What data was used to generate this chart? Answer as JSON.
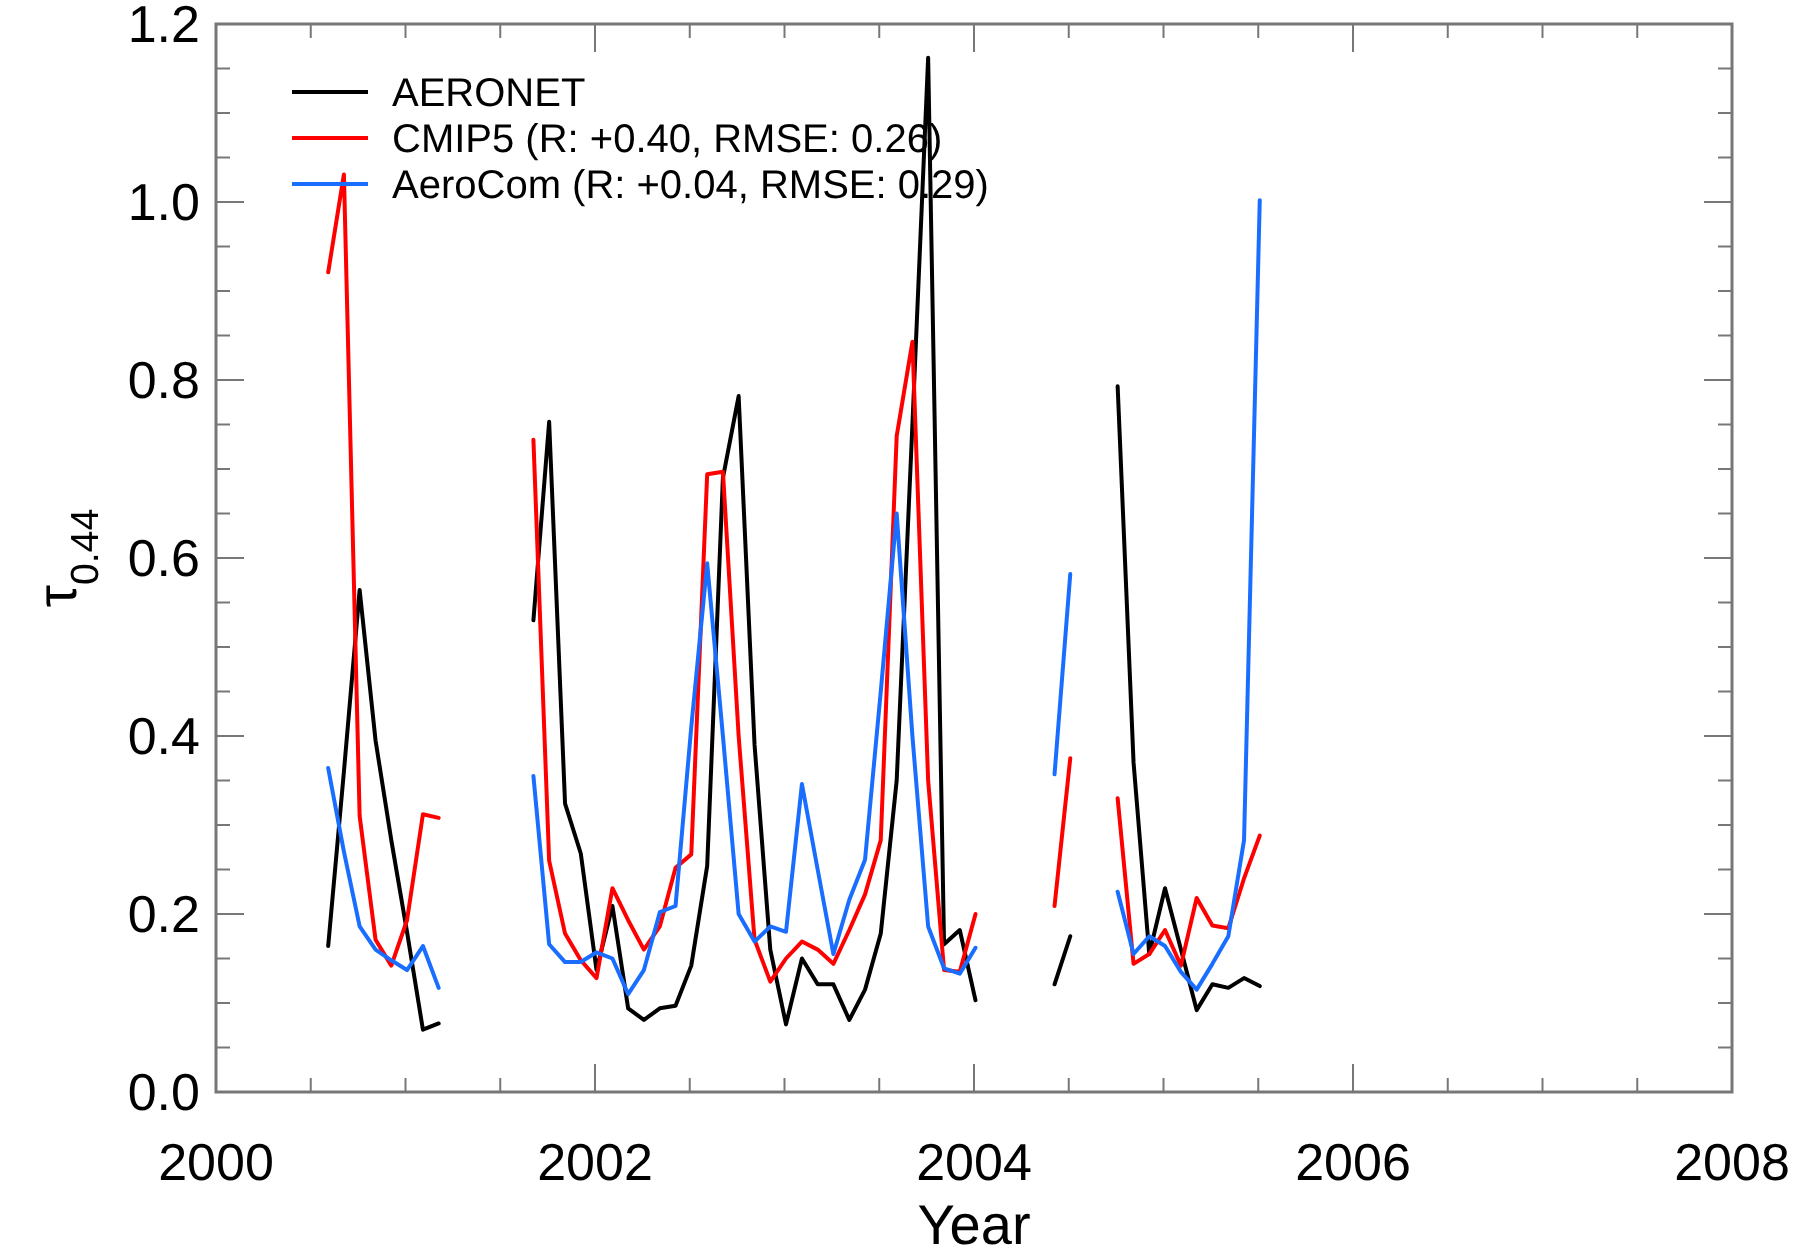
{
  "chart_data": {
    "type": "line",
    "xlabel": "Year",
    "ylabel": "τ$_{0.44}$",
    "x": [
      2000.592,
      2000.675,
      2000.758,
      2000.842,
      2000.925,
      2001.008,
      2001.092,
      2001.175,
      2001.258,
      2001.342,
      2001.425,
      2001.508,
      2001.592,
      2001.675,
      2001.758,
      2001.842,
      2001.925,
      2002.008,
      2002.092,
      2002.175,
      2002.258,
      2002.342,
      2002.425,
      2002.508,
      2002.592,
      2002.675,
      2002.758,
      2002.842,
      2002.925,
      2003.008,
      2003.092,
      2003.175,
      2003.258,
      2003.342,
      2003.425,
      2003.508,
      2003.592,
      2003.675,
      2003.758,
      2003.842,
      2003.925,
      2004.008,
      2004.092,
      2004.175,
      2004.258,
      2004.342,
      2004.425,
      2004.508,
      2004.592,
      2004.675,
      2004.758,
      2004.842,
      2004.925,
      2005.008,
      2005.092,
      2005.175,
      2005.258,
      2005.342,
      2005.425,
      2005.508
    ],
    "series": [
      {
        "name": "AERONET",
        "color": "#000000",
        "values": [
          0.164,
          0.36,
          0.564,
          0.395,
          0.283,
          0.18,
          0.07,
          0.077,
          null,
          null,
          null,
          null,
          null,
          0.53,
          0.753,
          0.324,
          0.268,
          0.137,
          0.209,
          0.094,
          0.081,
          0.094,
          0.097,
          0.142,
          0.254,
          0.69,
          0.782,
          0.39,
          0.16,
          0.076,
          0.15,
          0.121,
          0.121,
          0.081,
          0.115,
          0.178,
          0.35,
          0.75,
          1.162,
          0.166,
          0.182,
          0.103,
          null,
          null,
          null,
          null,
          0.121,
          0.175,
          null,
          null,
          0.793,
          0.37,
          0.155,
          0.229,
          0.16,
          0.092,
          0.121,
          0.117,
          0.128,
          0.119
        ]
      },
      {
        "name": "CMIP5 (R: +0.40, RMSE:  0.26)",
        "color": "#ff0000",
        "values": [
          0.921,
          1.031,
          0.31,
          0.171,
          0.142,
          0.193,
          0.312,
          0.308,
          null,
          null,
          null,
          null,
          null,
          0.733,
          0.26,
          0.178,
          0.148,
          0.128,
          0.229,
          0.193,
          0.16,
          0.186,
          0.252,
          0.267,
          0.694,
          0.697,
          0.4,
          0.171,
          0.124,
          0.15,
          0.169,
          0.16,
          0.144,
          0.182,
          0.222,
          0.283,
          0.737,
          0.843,
          0.35,
          0.137,
          0.135,
          0.2,
          null,
          null,
          null,
          null,
          0.209,
          0.375,
          null,
          null,
          0.33,
          0.144,
          0.155,
          0.182,
          0.142,
          0.218,
          0.187,
          0.184,
          0.24,
          0.288
        ]
      },
      {
        "name": "AeroCom (R: +0.04, RMSE:  0.29)",
        "color": "#1a6eff",
        "values": [
          0.364,
          0.27,
          0.186,
          0.16,
          0.148,
          0.137,
          0.164,
          0.117,
          null,
          null,
          null,
          null,
          null,
          0.355,
          0.166,
          0.146,
          0.146,
          0.157,
          0.15,
          0.11,
          0.137,
          0.202,
          0.209,
          0.41,
          0.594,
          0.4,
          0.2,
          0.169,
          0.186,
          0.18,
          0.346,
          0.25,
          0.155,
          0.216,
          0.261,
          0.45,
          0.65,
          0.4,
          0.186,
          0.139,
          0.133,
          0.162,
          null,
          null,
          null,
          null,
          0.357,
          0.582,
          null,
          null,
          0.225,
          0.155,
          0.175,
          0.164,
          0.135,
          0.115,
          0.144,
          0.175,
          0.283,
          1.002
        ]
      }
    ],
    "xlim": [
      2000,
      2008
    ],
    "xticks": [
      2000,
      {
        "value": 2000.5,
        "label": null
      },
      {
        "value": 2001,
        "label": null
      },
      {
        "value": 2001.5,
        "label": null
      },
      2002,
      {
        "value": 2002.5,
        "label": null
      },
      {
        "value": 2003,
        "label": null
      },
      {
        "value": 2003.5,
        "label": null
      },
      2004,
      {
        "value": 2004.5,
        "label": null
      },
      {
        "value": 2005,
        "label": null
      },
      {
        "value": 2005.5,
        "label": null
      },
      2006,
      {
        "value": 2006.5,
        "label": null
      },
      {
        "value": 2007,
        "label": null
      },
      {
        "value": 2007.5,
        "label": null
      },
      2008
    ],
    "ylim": [
      0,
      1.2
    ],
    "yticks": [
      {
        "value": 0,
        "label": "0.0"
      },
      {
        "value": 0.05,
        "label": null
      },
      {
        "value": 0.1,
        "label": null
      },
      {
        "value": 0.15,
        "label": null
      },
      {
        "value": 0.2,
        "label": "0.2"
      },
      {
        "value": 0.25,
        "label": null
      },
      {
        "value": 0.3,
        "label": null
      },
      {
        "value": 0.35,
        "label": null
      },
      {
        "value": 0.4,
        "label": "0.4"
      },
      {
        "value": 0.45,
        "label": null
      },
      {
        "value": 0.5,
        "label": null
      },
      {
        "value": 0.55,
        "label": null
      },
      {
        "value": 0.6,
        "label": "0.6"
      },
      {
        "value": 0.65,
        "label": null
      },
      {
        "value": 0.7,
        "label": null
      },
      {
        "value": 0.75,
        "label": null
      },
      {
        "value": 0.8,
        "label": "0.8"
      },
      {
        "value": 0.85,
        "label": null
      },
      {
        "value": 0.9,
        "label": null
      },
      {
        "value": 0.95,
        "label": null
      },
      {
        "value": 1.0,
        "label": "1.0"
      },
      {
        "value": 1.05,
        "label": null
      },
      {
        "value": 1.1,
        "label": null
      },
      {
        "value": 1.15,
        "label": null
      },
      {
        "value": 1.2,
        "label": "1.2"
      }
    ],
    "grid": false,
    "legend": "top left",
    "marker": "none",
    "line_style": "solid"
  }
}
